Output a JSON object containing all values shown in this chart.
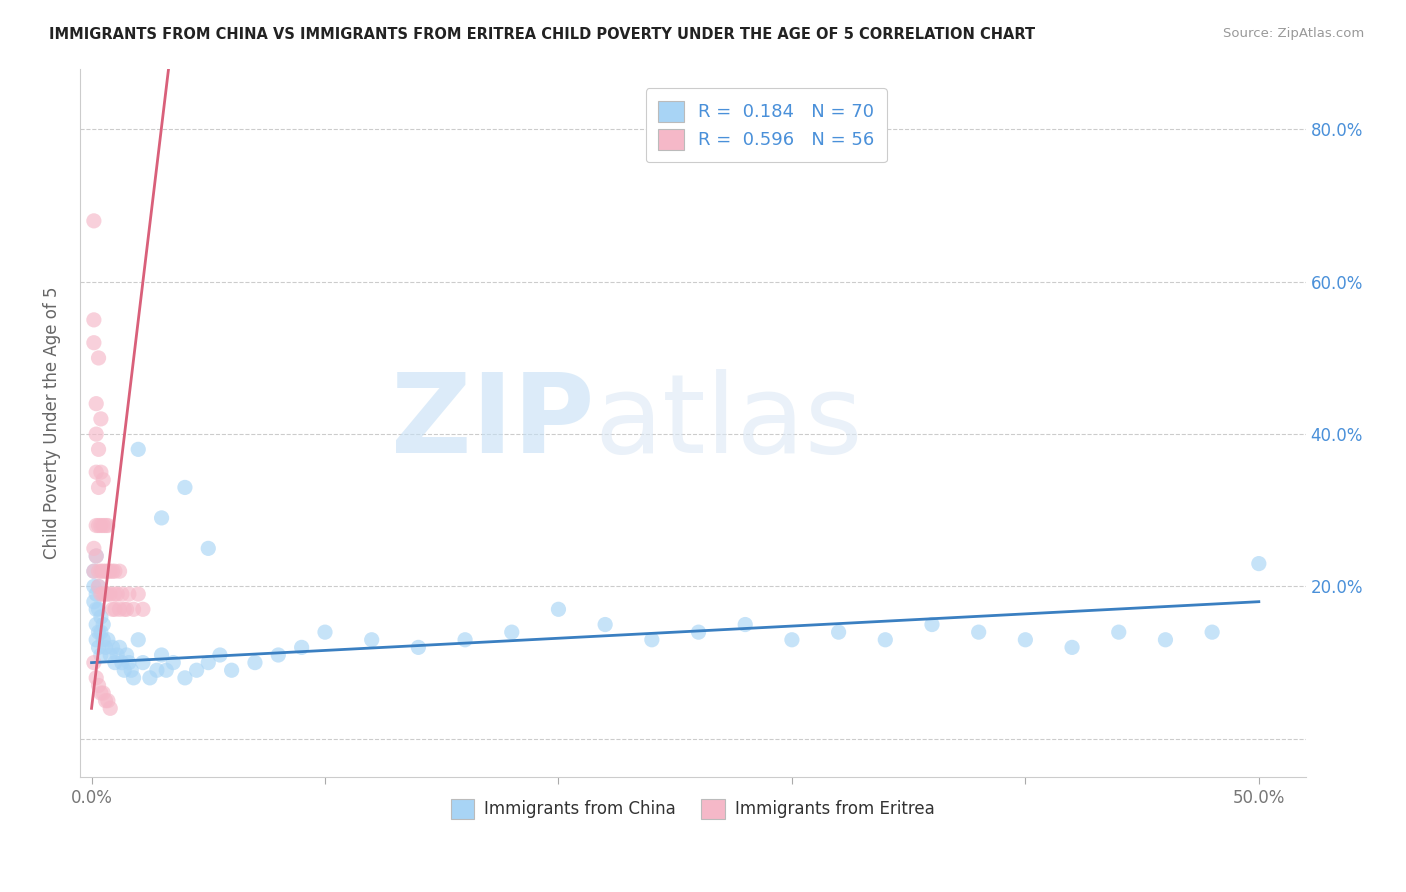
{
  "title": "IMMIGRANTS FROM CHINA VS IMMIGRANTS FROM ERITREA CHILD POVERTY UNDER THE AGE OF 5 CORRELATION CHART",
  "source": "Source: ZipAtlas.com",
  "ylabel": "Child Poverty Under the Age of 5",
  "x_tick_labels_bottom": [
    "0.0%",
    "50.0%"
  ],
  "x_tick_positions_bottom": [
    0.0,
    0.5
  ],
  "y_tick_vals": [
    0.0,
    0.2,
    0.4,
    0.6,
    0.8
  ],
  "y_tick_labels": [
    "",
    "20.0%",
    "40.0%",
    "60.0%",
    "80.0%"
  ],
  "xlim": [
    -0.005,
    0.52
  ],
  "ylim": [
    -0.05,
    0.88
  ],
  "china_R": 0.184,
  "china_N": 70,
  "eritrea_R": 0.596,
  "eritrea_N": 56,
  "china_color": "#a8d4f5",
  "eritrea_color": "#f5b8c8",
  "china_line_color": "#3a7fc1",
  "eritrea_line_color": "#d9607a",
  "watermark_zip": "ZIP",
  "watermark_atlas": "atlas",
  "legend_china_label": "R =  0.184   N = 70",
  "legend_eritrea_label": "R =  0.596   N = 56",
  "legend_china_display": "Immigrants from China",
  "legend_eritrea_display": "Immigrants from Eritrea",
  "china_x": [
    0.001,
    0.001,
    0.001,
    0.002,
    0.002,
    0.002,
    0.002,
    0.002,
    0.003,
    0.003,
    0.003,
    0.003,
    0.004,
    0.004,
    0.004,
    0.005,
    0.005,
    0.006,
    0.007,
    0.008,
    0.009,
    0.01,
    0.011,
    0.012,
    0.013,
    0.014,
    0.015,
    0.016,
    0.017,
    0.018,
    0.02,
    0.022,
    0.025,
    0.028,
    0.03,
    0.032,
    0.035,
    0.04,
    0.045,
    0.05,
    0.055,
    0.06,
    0.07,
    0.08,
    0.09,
    0.1,
    0.12,
    0.14,
    0.16,
    0.18,
    0.2,
    0.22,
    0.24,
    0.26,
    0.28,
    0.3,
    0.32,
    0.34,
    0.36,
    0.38,
    0.4,
    0.42,
    0.44,
    0.46,
    0.48,
    0.5,
    0.02,
    0.03,
    0.04,
    0.05
  ],
  "china_y": [
    0.22,
    0.2,
    0.18,
    0.24,
    0.19,
    0.17,
    0.15,
    0.13,
    0.2,
    0.17,
    0.14,
    0.12,
    0.16,
    0.14,
    0.11,
    0.15,
    0.13,
    0.12,
    0.13,
    0.11,
    0.12,
    0.1,
    0.11,
    0.12,
    0.1,
    0.09,
    0.11,
    0.1,
    0.09,
    0.08,
    0.13,
    0.1,
    0.08,
    0.09,
    0.11,
    0.09,
    0.1,
    0.08,
    0.09,
    0.1,
    0.11,
    0.09,
    0.1,
    0.11,
    0.12,
    0.14,
    0.13,
    0.12,
    0.13,
    0.14,
    0.17,
    0.15,
    0.13,
    0.14,
    0.15,
    0.13,
    0.14,
    0.13,
    0.15,
    0.14,
    0.13,
    0.12,
    0.14,
    0.13,
    0.14,
    0.23,
    0.38,
    0.29,
    0.33,
    0.25
  ],
  "eritrea_x": [
    0.001,
    0.001,
    0.001,
    0.001,
    0.001,
    0.002,
    0.002,
    0.002,
    0.002,
    0.002,
    0.003,
    0.003,
    0.003,
    0.003,
    0.003,
    0.003,
    0.004,
    0.004,
    0.004,
    0.004,
    0.004,
    0.005,
    0.005,
    0.005,
    0.005,
    0.006,
    0.006,
    0.006,
    0.007,
    0.007,
    0.007,
    0.008,
    0.008,
    0.009,
    0.009,
    0.01,
    0.01,
    0.01,
    0.011,
    0.012,
    0.012,
    0.013,
    0.014,
    0.015,
    0.016,
    0.018,
    0.02,
    0.022,
    0.001,
    0.002,
    0.003,
    0.004,
    0.005,
    0.006,
    0.007,
    0.008
  ],
  "eritrea_y": [
    0.68,
    0.55,
    0.52,
    0.25,
    0.22,
    0.44,
    0.4,
    0.35,
    0.28,
    0.24,
    0.5,
    0.38,
    0.33,
    0.28,
    0.22,
    0.2,
    0.42,
    0.35,
    0.28,
    0.22,
    0.19,
    0.34,
    0.28,
    0.22,
    0.19,
    0.28,
    0.22,
    0.19,
    0.28,
    0.22,
    0.19,
    0.22,
    0.19,
    0.22,
    0.17,
    0.22,
    0.19,
    0.17,
    0.19,
    0.22,
    0.17,
    0.19,
    0.17,
    0.17,
    0.19,
    0.17,
    0.19,
    0.17,
    0.1,
    0.08,
    0.07,
    0.06,
    0.06,
    0.05,
    0.05,
    0.04
  ],
  "eritrea_line_x": [
    0.0,
    0.033
  ],
  "eritrea_line_y": [
    0.04,
    0.88
  ],
  "china_line_x": [
    0.0,
    0.5
  ],
  "china_line_y": [
    0.1,
    0.18
  ]
}
